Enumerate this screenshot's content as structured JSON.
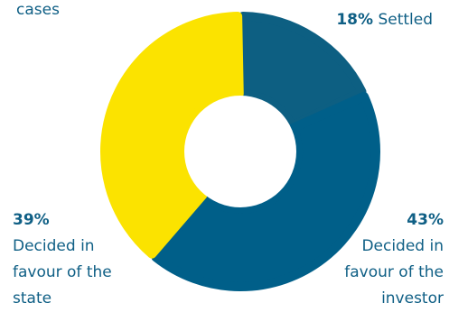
{
  "chart_data": {
    "type": "pie",
    "variant": "donut",
    "categories": [
      "Settled",
      "Decided in favour of the investor",
      "Decided in favour of the state"
    ],
    "values": [
      18,
      43,
      39
    ],
    "unit": "%",
    "colors": [
      "#0d5f82",
      "#005f89",
      "#fbe300"
    ],
    "top_note": "cases",
    "labels": {
      "settled": {
        "pct": "18%",
        "text": "Settled"
      },
      "investor": {
        "pct": "43%",
        "lines": [
          "Decided in",
          "favour of the",
          "investor"
        ]
      },
      "state": {
        "pct": "39%",
        "lines": [
          "Decided in",
          "favour of the",
          "state"
        ]
      }
    }
  }
}
